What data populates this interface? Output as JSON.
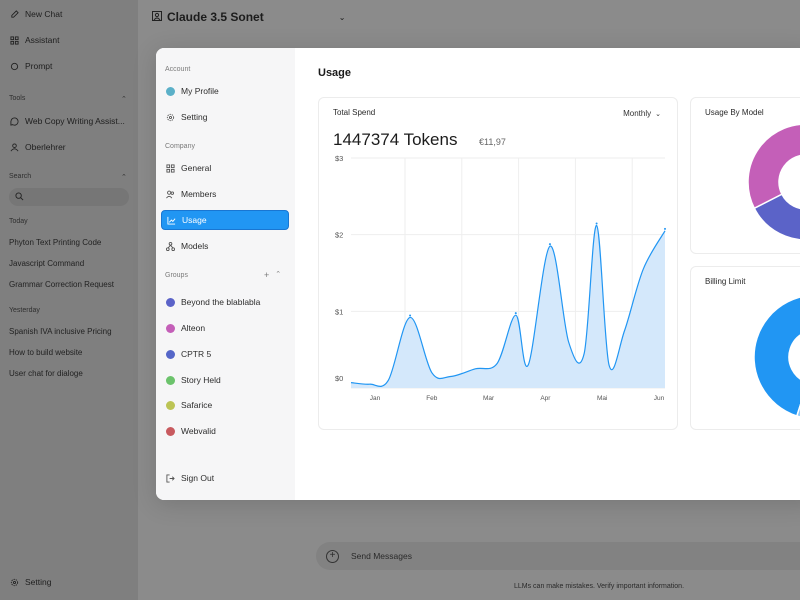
{
  "app": {
    "model_name": "Claude 3.5 Sonet",
    "sidebar": {
      "top_items": [
        {
          "label": "New Chat",
          "icon": "new-chat-icon"
        },
        {
          "label": "Assistant",
          "icon": "assistant-icon"
        },
        {
          "label": "Prompt",
          "icon": "prompt-icon"
        }
      ],
      "tools_header": "Tools",
      "tools": [
        {
          "label": "Web Copy Writing Assist...",
          "icon": "chat-bubble-icon"
        },
        {
          "label": "Oberlehrer",
          "icon": "person-icon"
        }
      ],
      "search_header": "Search",
      "search_placeholder": "",
      "today_header": "Today",
      "today": [
        "Phyton Text Printing Code",
        "Javascript Command",
        "Grammar Correction Request"
      ],
      "yesterday_header": "Yesterday",
      "yesterday": [
        "Spanish IVA inclusive Pricing",
        "How to build website",
        "User chat for dialoge"
      ],
      "settings_label": "Setting"
    },
    "composer_placeholder": "Send Messages",
    "footer_note": "LLMs can make mistakes. Verify important information."
  },
  "modal": {
    "title": "Usage",
    "account_header": "Account",
    "account_items": [
      {
        "label": "My Profile",
        "icon": "profile-avatar-icon"
      },
      {
        "label": "Setting",
        "icon": "gear-icon"
      }
    ],
    "company_header": "Company",
    "company_items": [
      {
        "label": "General",
        "icon": "grid-icon"
      },
      {
        "label": "Members",
        "icon": "members-icon"
      },
      {
        "label": "Usage",
        "icon": "chart-icon",
        "active": true
      },
      {
        "label": "Models",
        "icon": "models-icon"
      }
    ],
    "groups_header": "Groups",
    "groups": [
      {
        "label": "Beyond the blablabla",
        "color": "#5b63c8"
      },
      {
        "label": "Alteon",
        "color": "#c45fb8"
      },
      {
        "label": "CPTR 5",
        "color": "#5566c8"
      },
      {
        "label": "Story Held",
        "color": "#6cc36c"
      },
      {
        "label": "Safarice",
        "color": "#bcc455"
      },
      {
        "label": "Webvalid",
        "color": "#c85a5f"
      }
    ],
    "sign_out_label": "Sign Out",
    "total_spend": {
      "title": "Total Spend",
      "period": "Monthly",
      "tokens": "1447374 Tokens",
      "cost": "€11,97"
    },
    "usage_by_model_title": "Usage By Model",
    "billing_limit_title": "Billing Limit"
  },
  "chart_data": [
    {
      "type": "area",
      "title": "Total Spend",
      "categories": [
        "Jan",
        "Feb",
        "Mar",
        "Apr",
        "Mai",
        "Jun"
      ],
      "y_ticks": [
        "$3",
        "$2",
        "$1",
        "$0"
      ],
      "ylim": [
        0,
        3
      ],
      "grid": true,
      "color": "#2196f3",
      "fill": "#d4e8fb",
      "points": [
        [
          0.0,
          0.07
        ],
        [
          0.3,
          0.05
        ],
        [
          0.6,
          0.1
        ],
        [
          0.95,
          0.92
        ],
        [
          1.3,
          0.2
        ],
        [
          1.6,
          0.15
        ],
        [
          2.0,
          0.25
        ],
        [
          2.35,
          0.32
        ],
        [
          2.65,
          0.95
        ],
        [
          2.85,
          0.3
        ],
        [
          3.2,
          1.85
        ],
        [
          3.5,
          0.6
        ],
        [
          3.75,
          0.45
        ],
        [
          3.95,
          2.12
        ],
        [
          4.15,
          0.3
        ],
        [
          4.4,
          0.75
        ],
        [
          4.7,
          1.55
        ],
        [
          5.05,
          2.05
        ]
      ]
    },
    {
      "type": "pie",
      "title": "Usage By Model",
      "slices": [
        {
          "color": "#c45fb8",
          "value": 35
        },
        {
          "color": "#6cc36c",
          "value": 10
        },
        {
          "color": "#5566c8",
          "value": 15
        },
        {
          "color": "#bcc455",
          "value": 20
        },
        {
          "color": "#5b63c8",
          "value": 20
        }
      ]
    },
    {
      "type": "pie",
      "title": "Billing Limit",
      "slices": [
        {
          "color": "#2196f3",
          "value": 75
        },
        {
          "color": "#90caf9",
          "value": 25
        }
      ]
    }
  ]
}
